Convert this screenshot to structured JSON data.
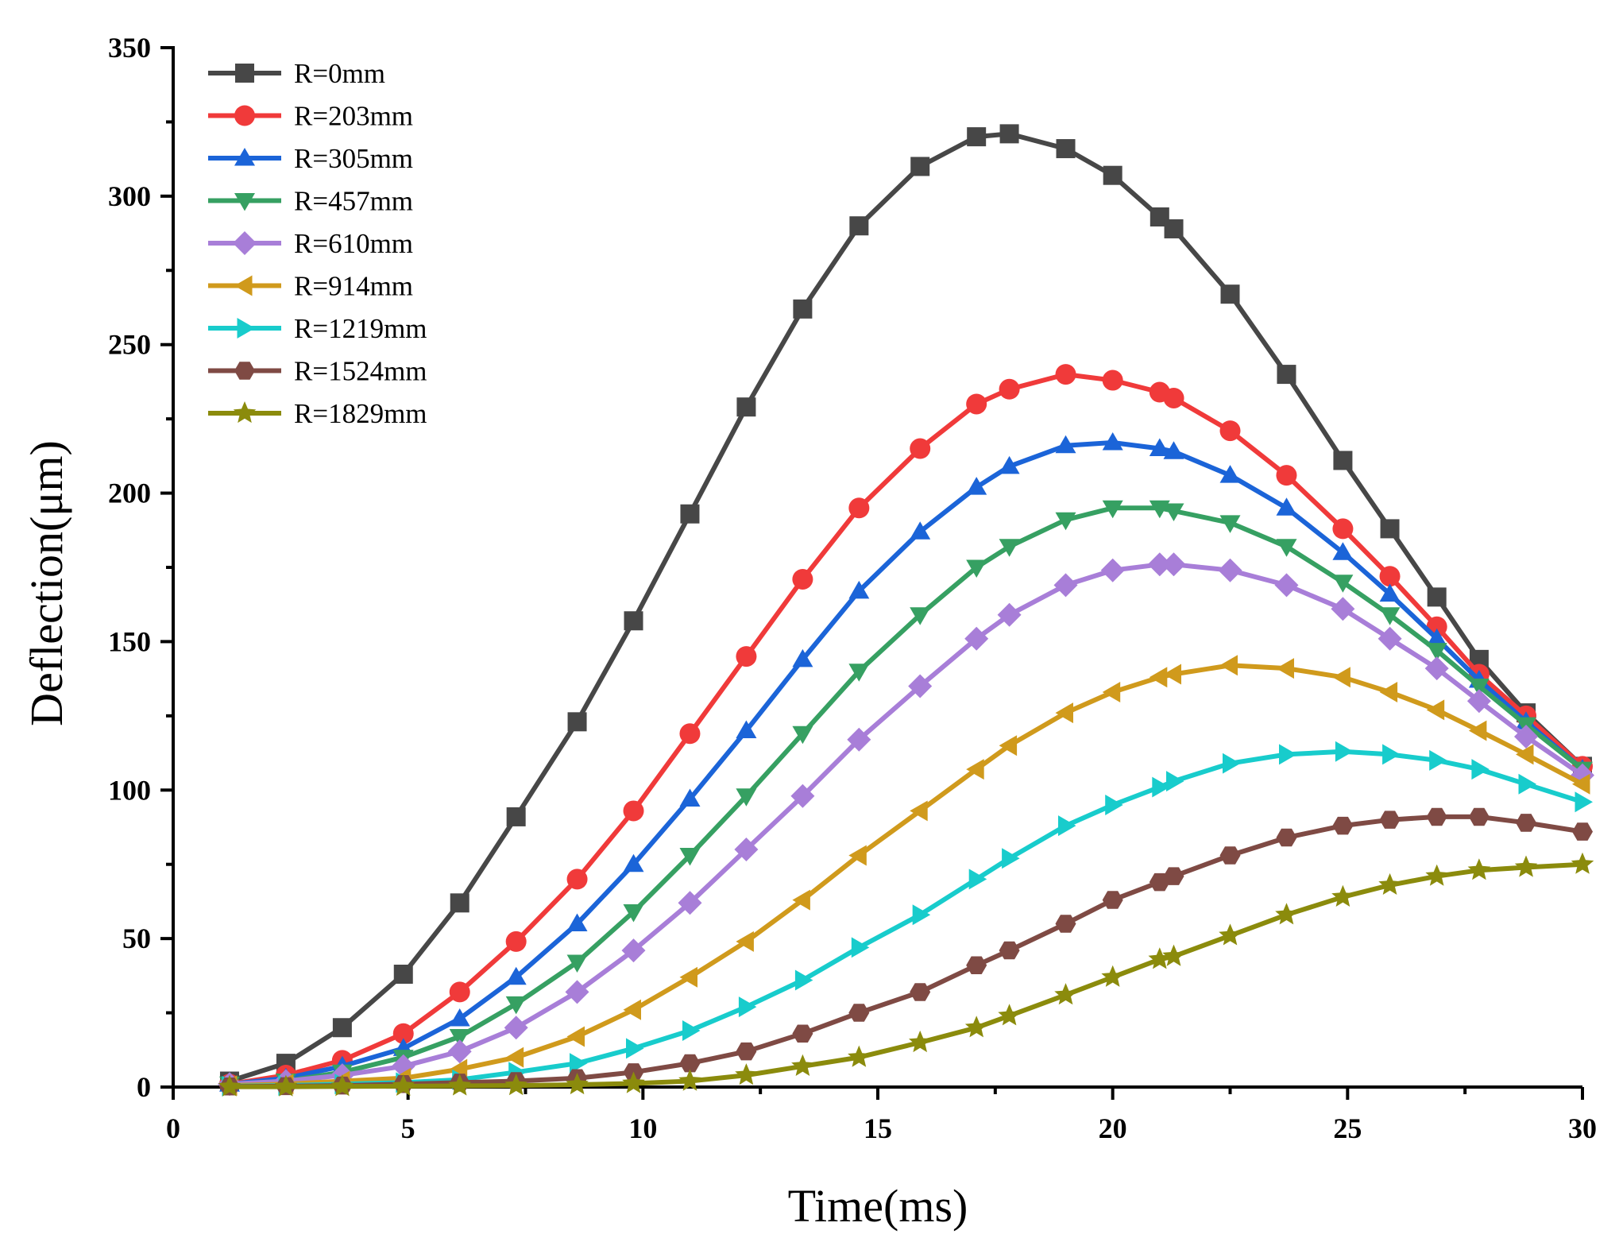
{
  "chart_data": {
    "type": "line",
    "title": "",
    "xlabel": "Time(ms)",
    "ylabel": "Deflection(μm)",
    "xlim": [
      0,
      30
    ],
    "ylim": [
      0,
      350
    ],
    "xticks": [
      0,
      5,
      10,
      15,
      20,
      25,
      30
    ],
    "yticks": [
      0,
      50,
      100,
      150,
      200,
      250,
      300,
      350
    ],
    "xtick_labels": [
      "0",
      "5",
      "10",
      "15",
      "20",
      "25",
      "30"
    ],
    "ytick_labels": [
      "0",
      "50",
      "100",
      "150",
      "200",
      "250",
      "300",
      "350"
    ],
    "grid": false,
    "legend_position": "top-left",
    "x": [
      1.2,
      2.4,
      3.6,
      4.9,
      6.1,
      7.3,
      8.6,
      9.8,
      11.0,
      12.2,
      13.4,
      14.6,
      15.9,
      17.1,
      17.8,
      19.0,
      20.0,
      21.0,
      21.3,
      22.5,
      23.7,
      24.9,
      25.9,
      26.9,
      27.8,
      28.8,
      30.0
    ],
    "series": [
      {
        "name": "R=0mm",
        "color": "#474747",
        "marker": "square",
        "values": [
          2,
          8,
          20,
          38,
          62,
          91,
          123,
          157,
          193,
          229,
          262,
          290,
          310,
          320,
          321,
          316,
          307,
          293,
          289,
          267,
          240,
          211,
          188,
          165,
          144,
          126,
          108
        ]
      },
      {
        "name": "R=203mm",
        "color": "#f03a3a",
        "marker": "circle",
        "values": [
          1,
          4,
          9,
          18,
          32,
          49,
          70,
          93,
          119,
          145,
          171,
          195,
          215,
          230,
          235,
          240,
          238,
          234,
          232,
          221,
          206,
          188,
          172,
          155,
          139,
          125,
          108
        ]
      },
      {
        "name": "R=305mm",
        "color": "#1b64d8",
        "marker": "triangle-up",
        "values": [
          1,
          3,
          7,
          13,
          23,
          37,
          55,
          75,
          97,
          120,
          144,
          167,
          187,
          202,
          209,
          216,
          217,
          215,
          214,
          206,
          195,
          180,
          166,
          151,
          137,
          123,
          107
        ]
      },
      {
        "name": "R=457mm",
        "color": "#36a062",
        "marker": "triangle-down",
        "values": [
          1,
          2,
          5,
          10,
          17,
          28,
          42,
          59,
          78,
          98,
          119,
          140,
          159,
          175,
          182,
          191,
          195,
          195,
          194,
          190,
          182,
          170,
          159,
          147,
          135,
          122,
          107
        ]
      },
      {
        "name": "R=610mm",
        "color": "#a87ed8",
        "marker": "diamond",
        "values": [
          1,
          2,
          4,
          7,
          12,
          20,
          32,
          46,
          62,
          80,
          98,
          117,
          135,
          151,
          159,
          169,
          174,
          176,
          176,
          174,
          169,
          161,
          151,
          141,
          130,
          118,
          105
        ]
      },
      {
        "name": "R=914mm",
        "color": "#d09a1c",
        "marker": "triangle-left",
        "values": [
          0.5,
          1,
          2,
          3,
          6,
          10,
          17,
          26,
          37,
          49,
          63,
          78,
          93,
          107,
          115,
          126,
          133,
          138,
          139,
          142,
          141,
          138,
          133,
          127,
          120,
          112,
          102
        ]
      },
      {
        "name": "R=1219mm",
        "color": "#18cccc",
        "marker": "triangle-right",
        "values": [
          0.3,
          0.5,
          1,
          1.5,
          2.5,
          5,
          8,
          13,
          19,
          27,
          36,
          47,
          58,
          70,
          77,
          88,
          95,
          101,
          103,
          109,
          112,
          113,
          112,
          110,
          107,
          102,
          96
        ]
      },
      {
        "name": "R=1524mm",
        "color": "#7f4a44",
        "marker": "hexagon",
        "values": [
          0.2,
          0.3,
          0.5,
          1,
          1.5,
          2,
          3,
          5,
          8,
          12,
          18,
          25,
          32,
          41,
          46,
          55,
          63,
          69,
          71,
          78,
          84,
          88,
          90,
          91,
          91,
          89,
          86
        ]
      },
      {
        "name": "R=1829mm",
        "color": "#8b8b0c",
        "marker": "star",
        "values": [
          0.1,
          0.1,
          0.2,
          0.3,
          0.4,
          0.5,
          0.8,
          1.2,
          2,
          4,
          7,
          10,
          15,
          20,
          24,
          31,
          37,
          43,
          44,
          51,
          58,
          64,
          68,
          71,
          73,
          74,
          75
        ]
      }
    ]
  }
}
